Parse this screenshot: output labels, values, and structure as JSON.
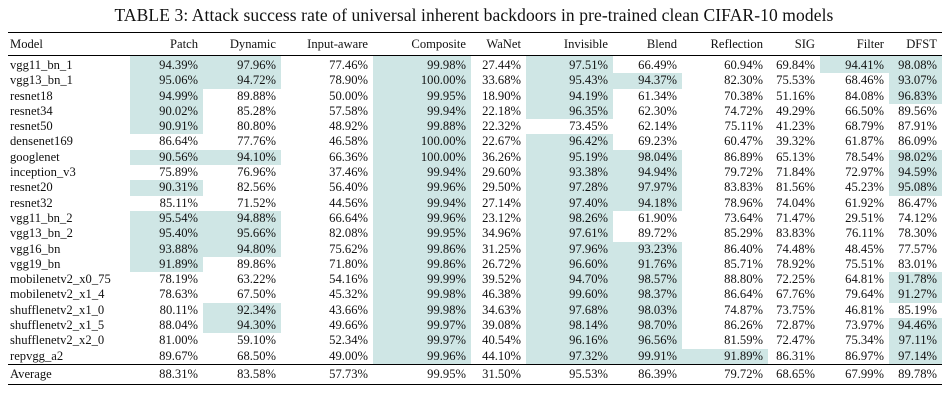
{
  "caption": "TABLE 3: Attack success rate of universal inherent backdoors in pre-trained clean CIFAR-10 models",
  "table": {
    "headers": [
      "Model",
      "Patch",
      "Dynamic",
      "Input-aware",
      "Composite",
      "WaNet",
      "Invisible",
      "Blend",
      "Reflection",
      "SIG",
      "Filter",
      "DFST"
    ],
    "highlight_color": "#cfe6e5",
    "rows": [
      {
        "cells": [
          "vgg11_bn_1",
          "94.39%",
          "97.96%",
          "77.46%",
          "99.98%",
          "27.44%",
          "97.51%",
          "66.49%",
          "60.94%",
          "69.84%",
          "94.41%",
          "98.08%"
        ],
        "highlighted": [
          1,
          2,
          4,
          6,
          10,
          11
        ]
      },
      {
        "cells": [
          "vgg13_bn_1",
          "95.06%",
          "94.72%",
          "78.90%",
          "100.00%",
          "33.68%",
          "95.43%",
          "94.37%",
          "82.30%",
          "75.53%",
          "68.46%",
          "93.07%"
        ],
        "highlighted": [
          1,
          2,
          4,
          6,
          7,
          11
        ]
      },
      {
        "cells": [
          "resnet18",
          "94.99%",
          "89.88%",
          "50.00%",
          "99.95%",
          "18.90%",
          "94.19%",
          "61.34%",
          "70.38%",
          "51.16%",
          "84.08%",
          "96.83%"
        ],
        "highlighted": [
          1,
          4,
          6,
          11
        ]
      },
      {
        "cells": [
          "resnet34",
          "90.02%",
          "85.28%",
          "57.58%",
          "99.94%",
          "22.18%",
          "96.35%",
          "62.30%",
          "74.72%",
          "49.29%",
          "66.50%",
          "89.56%"
        ],
        "highlighted": [
          1,
          4,
          6
        ]
      },
      {
        "cells": [
          "resnet50",
          "90.91%",
          "80.80%",
          "48.92%",
          "99.88%",
          "22.32%",
          "73.45%",
          "62.14%",
          "75.11%",
          "41.23%",
          "68.79%",
          "87.91%"
        ],
        "highlighted": [
          1,
          4
        ]
      },
      {
        "cells": [
          "densenet169",
          "86.64%",
          "77.76%",
          "46.58%",
          "100.00%",
          "22.67%",
          "96.42%",
          "69.23%",
          "60.47%",
          "39.32%",
          "61.87%",
          "86.09%"
        ],
        "highlighted": [
          4,
          6
        ]
      },
      {
        "cells": [
          "googlenet",
          "90.56%",
          "94.10%",
          "66.36%",
          "100.00%",
          "36.26%",
          "95.19%",
          "98.04%",
          "86.89%",
          "65.13%",
          "78.54%",
          "98.02%"
        ],
        "highlighted": [
          1,
          2,
          4,
          6,
          7,
          11
        ]
      },
      {
        "cells": [
          "inception_v3",
          "75.89%",
          "76.96%",
          "37.46%",
          "99.94%",
          "29.60%",
          "93.38%",
          "94.94%",
          "79.72%",
          "71.84%",
          "72.97%",
          "94.59%"
        ],
        "highlighted": [
          4,
          6,
          7,
          11
        ]
      },
      {
        "cells": [
          "resnet20",
          "90.31%",
          "82.56%",
          "56.40%",
          "99.96%",
          "29.50%",
          "97.28%",
          "97.97%",
          "83.83%",
          "81.56%",
          "45.23%",
          "95.08%"
        ],
        "highlighted": [
          1,
          4,
          6,
          7,
          11
        ]
      },
      {
        "cells": [
          "resnet32",
          "85.11%",
          "71.52%",
          "44.56%",
          "99.94%",
          "27.14%",
          "97.40%",
          "94.18%",
          "78.96%",
          "74.04%",
          "61.92%",
          "86.47%"
        ],
        "highlighted": [
          4,
          6,
          7
        ]
      },
      {
        "cells": [
          "vgg11_bn_2",
          "95.54%",
          "94.88%",
          "66.64%",
          "99.96%",
          "23.12%",
          "98.26%",
          "61.90%",
          "73.64%",
          "71.47%",
          "29.51%",
          "74.12%"
        ],
        "highlighted": [
          1,
          2,
          4,
          6
        ]
      },
      {
        "cells": [
          "vgg13_bn_2",
          "95.40%",
          "95.66%",
          "82.08%",
          "99.95%",
          "34.96%",
          "97.61%",
          "89.72%",
          "85.29%",
          "83.83%",
          "76.11%",
          "78.30%"
        ],
        "highlighted": [
          1,
          2,
          4,
          6
        ]
      },
      {
        "cells": [
          "vgg16_bn",
          "93.88%",
          "94.80%",
          "75.62%",
          "99.86%",
          "31.25%",
          "97.96%",
          "93.23%",
          "86.40%",
          "74.48%",
          "48.45%",
          "77.57%"
        ],
        "highlighted": [
          1,
          2,
          4,
          6,
          7
        ]
      },
      {
        "cells": [
          "vgg19_bn",
          "91.89%",
          "89.86%",
          "71.80%",
          "99.86%",
          "26.72%",
          "96.60%",
          "91.76%",
          "85.71%",
          "78.92%",
          "75.51%",
          "83.01%"
        ],
        "highlighted": [
          1,
          4,
          6,
          7
        ]
      },
      {
        "cells": [
          "mobilenetv2_x0_75",
          "78.19%",
          "63.22%",
          "54.16%",
          "99.99%",
          "39.52%",
          "94.70%",
          "98.57%",
          "88.80%",
          "72.25%",
          "64.81%",
          "91.78%"
        ],
        "highlighted": [
          4,
          6,
          7,
          11
        ]
      },
      {
        "cells": [
          "mobilenetv2_x1_4",
          "78.63%",
          "67.50%",
          "45.32%",
          "99.98%",
          "46.38%",
          "99.60%",
          "98.37%",
          "86.64%",
          "67.76%",
          "79.64%",
          "91.27%"
        ],
        "highlighted": [
          4,
          6,
          7,
          11
        ]
      },
      {
        "cells": [
          "shufflenetv2_x1_0",
          "80.11%",
          "92.34%",
          "43.66%",
          "99.98%",
          "34.63%",
          "97.68%",
          "98.03%",
          "74.87%",
          "73.75%",
          "46.81%",
          "85.19%"
        ],
        "highlighted": [
          2,
          4,
          6,
          7
        ]
      },
      {
        "cells": [
          "shufflenetv2_x1_5",
          "88.04%",
          "94.30%",
          "49.66%",
          "99.97%",
          "39.08%",
          "98.14%",
          "98.70%",
          "86.26%",
          "72.87%",
          "73.97%",
          "94.46%"
        ],
        "highlighted": [
          2,
          4,
          6,
          7,
          11
        ]
      },
      {
        "cells": [
          "shufflenetv2_x2_0",
          "81.00%",
          "59.10%",
          "52.34%",
          "99.97%",
          "40.54%",
          "96.16%",
          "96.56%",
          "81.59%",
          "72.47%",
          "75.34%",
          "97.11%"
        ],
        "highlighted": [
          4,
          6,
          7,
          11
        ]
      },
      {
        "cells": [
          "repvgg_a2",
          "89.67%",
          "68.50%",
          "49.00%",
          "99.96%",
          "44.10%",
          "97.32%",
          "99.91%",
          "91.89%",
          "86.31%",
          "86.97%",
          "97.14%"
        ],
        "highlighted": [
          4,
          6,
          7,
          8,
          11
        ]
      }
    ],
    "average": [
      "Average",
      "88.31%",
      "83.58%",
      "57.73%",
      "99.95%",
      "31.50%",
      "95.53%",
      "86.39%",
      "79.72%",
      "68.65%",
      "67.99%",
      "89.78%"
    ]
  }
}
